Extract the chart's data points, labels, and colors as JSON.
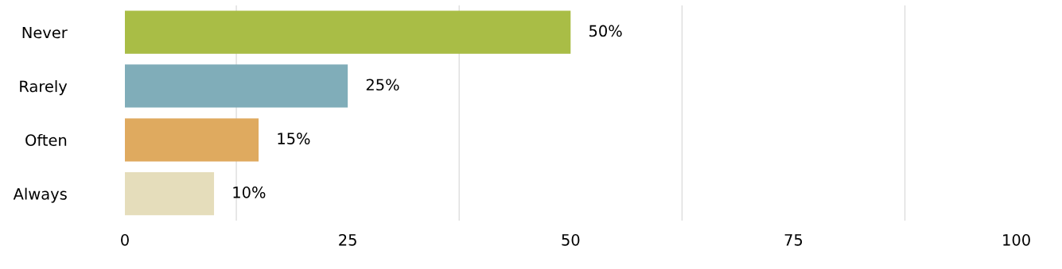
{
  "chart_data": {
    "type": "bar",
    "orientation": "horizontal",
    "categories": [
      "Never",
      "Rarely",
      "Often",
      "Always"
    ],
    "values": [
      50,
      25,
      15,
      10
    ],
    "colors": [
      "#a9bd46",
      "#80adb9",
      "#dfaa5f",
      "#e5ddbb"
    ],
    "value_labels": [
      "50%",
      "25%",
      "15%",
      "10%"
    ],
    "xlim": [
      0,
      100
    ],
    "xticks": [
      0,
      25,
      50,
      75,
      100
    ],
    "grid": "x"
  }
}
